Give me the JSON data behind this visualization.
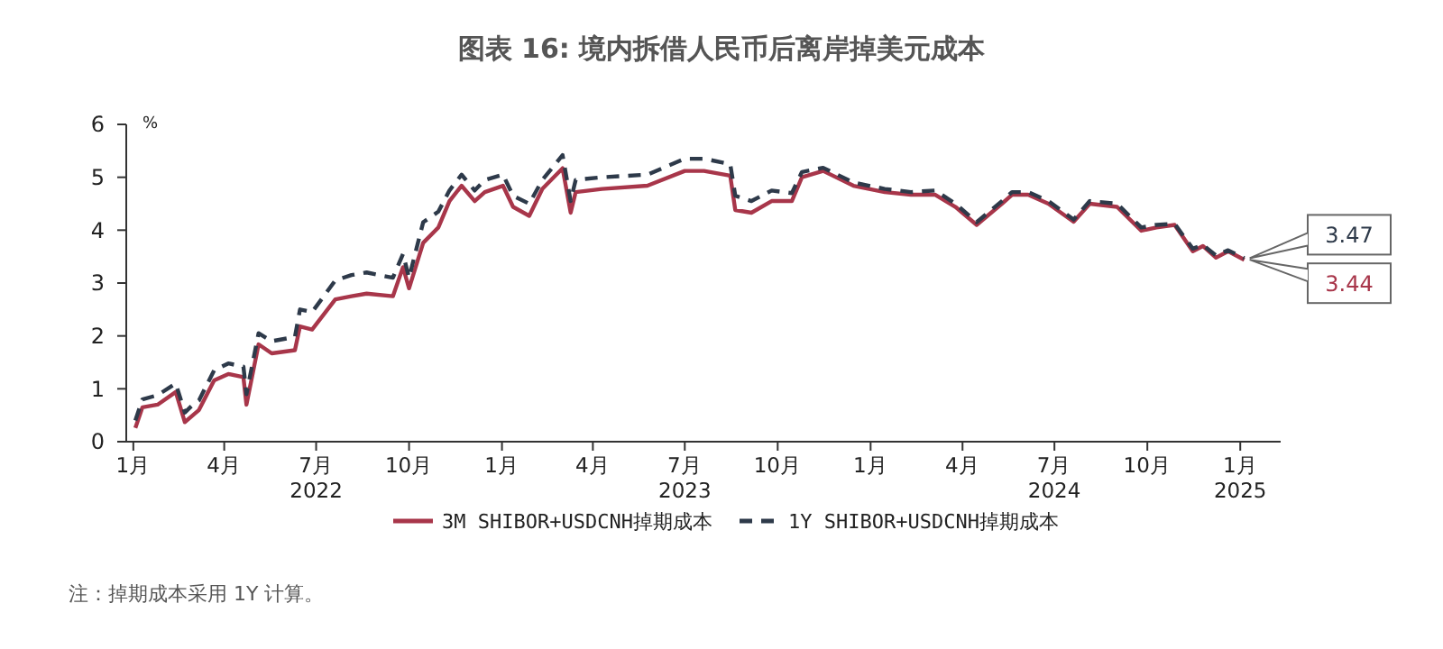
{
  "chart_data": {
    "type": "line",
    "title": "图表 16: 境内拆借人民币后离岸掉美元成本",
    "ylabel": "%",
    "x": [
      "2022-01-03",
      "2022-01-10",
      "2022-01-25",
      "2022-02-12",
      "2022-02-21",
      "2022-03-01",
      "2022-03-07",
      "2022-03-22",
      "2022-04-05",
      "2022-04-20",
      "2022-04-23",
      "2022-05-05",
      "2022-05-18",
      "2022-06-10",
      "2022-06-15",
      "2022-06-27",
      "2022-07-20",
      "2022-08-05",
      "2022-08-20",
      "2022-09-15",
      "2022-09-25",
      "2022-10-01",
      "2022-10-15",
      "2022-10-30",
      "2022-11-10",
      "2022-11-22",
      "2022-12-05",
      "2022-12-15",
      "2023-01-02",
      "2023-01-12",
      "2023-01-28",
      "2023-02-10",
      "2023-03-02",
      "2023-03-10",
      "2023-03-15",
      "2023-04-10",
      "2023-05-25",
      "2023-07-01",
      "2023-07-20",
      "2023-08-15",
      "2023-08-20",
      "2023-09-05",
      "2023-09-25",
      "2023-10-15",
      "2023-10-25",
      "2023-11-15",
      "2023-12-15",
      "2024-01-15",
      "2024-02-10",
      "2024-03-05",
      "2024-03-25",
      "2024-04-15",
      "2024-05-10",
      "2024-05-20",
      "2024-06-05",
      "2024-06-25",
      "2024-07-20",
      "2024-08-05",
      "2024-09-01",
      "2024-09-25",
      "2024-10-10",
      "2024-10-28",
      "2024-11-15",
      "2024-11-25",
      "2024-12-08",
      "2024-12-20",
      "2025-01-05"
    ],
    "series": [
      {
        "name": "3M SHIBOR+USDCNH掉期成本",
        "color": "#a8364a",
        "line_style": "solid",
        "values": [
          0.26,
          0.65,
          0.7,
          0.94,
          0.37,
          0.5,
          0.6,
          1.16,
          1.28,
          1.22,
          0.7,
          1.84,
          1.67,
          1.73,
          2.18,
          2.12,
          2.69,
          2.75,
          2.8,
          2.75,
          3.3,
          2.9,
          3.76,
          4.05,
          4.55,
          4.84,
          4.55,
          4.72,
          4.84,
          4.44,
          4.27,
          4.78,
          5.17,
          4.33,
          4.72,
          4.78,
          4.84,
          5.12,
          5.12,
          5.03,
          4.38,
          4.33,
          4.55,
          4.55,
          5.0,
          5.12,
          4.84,
          4.72,
          4.67,
          4.67,
          4.44,
          4.1,
          4.5,
          4.67,
          4.67,
          4.5,
          4.16,
          4.5,
          4.44,
          3.99,
          4.05,
          4.1,
          3.6,
          3.7,
          3.48,
          3.6,
          3.44
        ]
      },
      {
        "name": "1Y SHIBOR+USDCNH掉期成本",
        "color": "#2e3a4a",
        "line_style": "dashed",
        "values": [
          0.4,
          0.8,
          0.88,
          1.1,
          0.55,
          0.7,
          0.78,
          1.35,
          1.48,
          1.42,
          0.9,
          2.05,
          1.9,
          1.98,
          2.5,
          2.45,
          3.05,
          3.15,
          3.2,
          3.1,
          3.55,
          3.1,
          4.15,
          4.35,
          4.75,
          5.05,
          4.75,
          4.95,
          5.05,
          4.65,
          4.5,
          4.95,
          5.42,
          4.55,
          4.95,
          5.0,
          5.05,
          5.35,
          5.35,
          5.25,
          4.65,
          4.55,
          4.75,
          4.7,
          5.1,
          5.18,
          4.9,
          4.78,
          4.72,
          4.75,
          4.5,
          4.15,
          4.55,
          4.72,
          4.72,
          4.55,
          4.2,
          4.55,
          4.5,
          4.05,
          4.1,
          4.12,
          3.65,
          3.72,
          3.52,
          3.62,
          3.47
        ]
      }
    ],
    "xlim": [
      "2021-12-25",
      "2025-02-10"
    ],
    "xticks": [
      {
        "value": "2022-01-01",
        "label": "1月"
      },
      {
        "value": "2022-04-01",
        "label": "4月"
      },
      {
        "value": "2022-07-01",
        "label": "7月\n2022"
      },
      {
        "value": "2022-10-01",
        "label": "10月"
      },
      {
        "value": "2023-01-01",
        "label": "1月"
      },
      {
        "value": "2023-04-01",
        "label": "4月"
      },
      {
        "value": "2023-07-01",
        "label": "7月\n2023"
      },
      {
        "value": "2023-10-01",
        "label": "10月"
      },
      {
        "value": "2024-01-01",
        "label": "1月"
      },
      {
        "value": "2024-04-01",
        "label": "4月"
      },
      {
        "value": "2024-07-01",
        "label": "7月\n2024"
      },
      {
        "value": "2024-10-01",
        "label": "10月"
      },
      {
        "value": "2025-01-01",
        "label": "1月\n2025"
      }
    ],
    "ylim": [
      0,
      6
    ],
    "yticks": [
      0,
      1,
      2,
      3,
      4,
      5,
      6
    ],
    "grid": false,
    "legend": "bottom",
    "annotations": [
      {
        "text": "3.47",
        "x": "2025-01-05",
        "y": 3.47
      },
      {
        "text": "3.44",
        "x": "2025-01-05",
        "y": 3.44
      },
      "注：掉期成本采用 1Y 计算。"
    ]
  }
}
